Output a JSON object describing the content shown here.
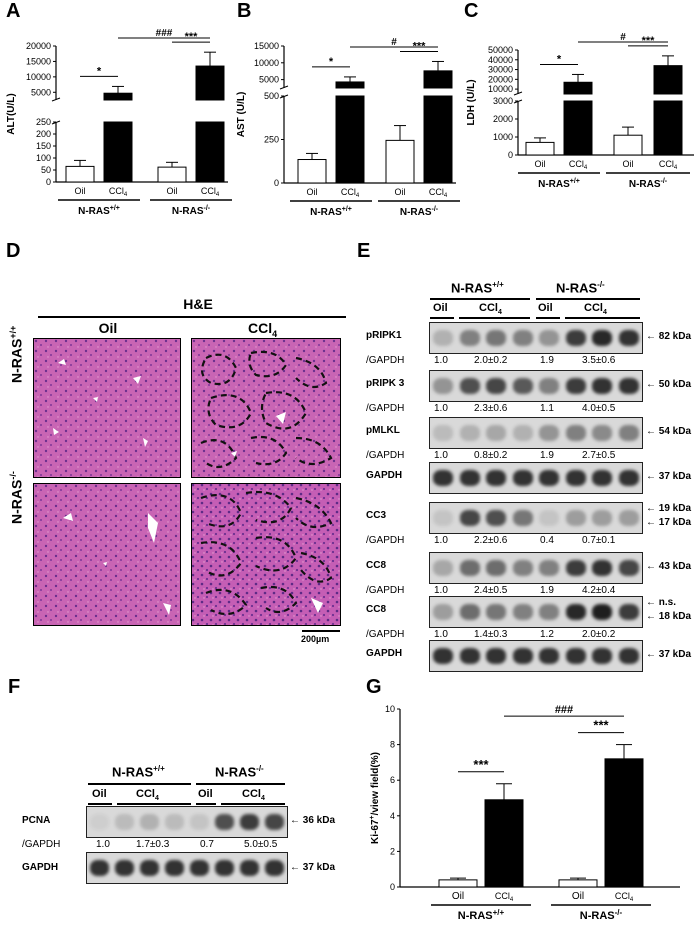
{
  "panels": {
    "A": "A",
    "B": "B",
    "C": "C",
    "D": "D",
    "E": "E",
    "F": "F",
    "G": "G"
  },
  "common": {
    "oil": "Oil",
    "ccl4": "CCl",
    "ccl4_sub": "4",
    "nras_wt": "N-RAS",
    "nras_wt_sup": "+/+",
    "nras_ko": "N-RAS",
    "nras_ko_sup": "-/-"
  },
  "chart_data": [
    {
      "id": "A",
      "type": "bar",
      "ylabel": "ALT(U/L)",
      "categories": [
        "Oil",
        "CCl4",
        "Oil",
        "CCl4"
      ],
      "groups": [
        "N-RAS+/+",
        "N-RAS-/-"
      ],
      "values": [
        65,
        4700,
        62,
        13500
      ],
      "errors": [
        25,
        2200,
        20,
        4500
      ],
      "fills": [
        "#ffffff",
        "#000000",
        "#ffffff",
        "#000000"
      ],
      "broken_axis": {
        "lower": [
          0,
          250
        ],
        "upper": [
          2500,
          20000
        ]
      },
      "lower_ticks": [
        "0",
        "50",
        "100",
        "150",
        "200",
        "250"
      ],
      "upper_ticks": [
        "5000",
        "10000",
        "15000",
        "20000"
      ],
      "sig_within": [
        "*",
        "***"
      ],
      "sig_between": "###"
    },
    {
      "id": "B",
      "type": "bar",
      "ylabel": "AST (U/L)",
      "categories": [
        "Oil",
        "CCl4",
        "Oil",
        "CCl4"
      ],
      "groups": [
        "N-RAS+/+",
        "N-RAS-/-"
      ],
      "values": [
        135,
        4300,
        245,
        7600
      ],
      "errors": [
        35,
        1500,
        85,
        2800
      ],
      "fills": [
        "#ffffff",
        "#000000",
        "#ffffff",
        "#000000"
      ],
      "broken_axis": {
        "lower": [
          0,
          500
        ],
        "upper": [
          2500,
          15000
        ]
      },
      "lower_ticks": [
        "0",
        "250",
        "500"
      ],
      "upper_ticks": [
        "5000",
        "10000",
        "15000"
      ],
      "sig_within": [
        "*",
        "***"
      ],
      "sig_between": "#"
    },
    {
      "id": "C",
      "type": "bar",
      "ylabel": "LDH (U/L)",
      "categories": [
        "Oil",
        "CCl4",
        "Oil",
        "CCl4"
      ],
      "groups": [
        "N-RAS+/+",
        "N-RAS-/-"
      ],
      "values": [
        700,
        17000,
        1100,
        34000
      ],
      "errors": [
        250,
        8000,
        450,
        10000
      ],
      "fills": [
        "#ffffff",
        "#000000",
        "#ffffff",
        "#000000"
      ],
      "broken_axis": {
        "lower": [
          0,
          3000
        ],
        "upper": [
          5000,
          50000
        ]
      },
      "lower_ticks": [
        "0",
        "1000",
        "2000",
        "3000"
      ],
      "upper_ticks": [
        "10000",
        "20000",
        "30000",
        "40000",
        "50000"
      ],
      "sig_within": [
        "*",
        "***"
      ],
      "sig_between": "#"
    },
    {
      "id": "G",
      "type": "bar",
      "ylabel": "Ki-67",
      "ylabel_sup": "+",
      "ylabel_tail": "/view field(%)",
      "categories": [
        "Oil",
        "CCl4",
        "Oil",
        "CCl4"
      ],
      "groups": [
        "N-RAS+/+",
        "N-RAS-/-"
      ],
      "values": [
        0.4,
        4.9,
        0.4,
        7.2
      ],
      "errors": [
        0.1,
        0.9,
        0.1,
        0.8
      ],
      "fills": [
        "#ffffff",
        "#000000",
        "#ffffff",
        "#000000"
      ],
      "ylim": [
        0,
        10
      ],
      "ticks": [
        "0",
        "2",
        "4",
        "6",
        "8",
        "10"
      ],
      "sig_within": [
        "***",
        "***"
      ],
      "sig_between": "###"
    }
  ],
  "histology": {
    "title": "H&E",
    "col_oil": "Oil",
    "col_ccl4": "CCl",
    "col_ccl4_sub": "4",
    "scale_bar": "200µm"
  },
  "western_E": {
    "rows": [
      {
        "label": "pRIPK1",
        "kda": "82 kDa"
      },
      {
        "label": "pRIPK 3",
        "kda": "50 kDa"
      },
      {
        "label": "pMLKL",
        "kda": "54 kDa"
      },
      {
        "label": "GAPDH",
        "kda": "37 kDa"
      },
      {
        "label": "CC3",
        "kda": "19 kDa",
        "kda2": "17 kDa"
      },
      {
        "label": "CC8",
        "kda": "43 kDa"
      },
      {
        "label": "CC8",
        "kda": "n.s.",
        "kda2": "18 kDa"
      },
      {
        "label": "GAPDH",
        "kda": "37 kDa"
      }
    ],
    "norm_label": "/GAPDH",
    "norms": [
      [
        "1.0",
        "2.0±0.2",
        "1.9",
        "3.5±0.6"
      ],
      [
        "1.0",
        "2.3±0.6",
        "1.1",
        "4.0±0.5"
      ],
      [
        "1.0",
        "0.8±0.2",
        "1.9",
        "2.7±0.5"
      ],
      [
        "1.0",
        "2.2±0.6",
        "0.4",
        "0.7±0.1"
      ],
      [
        "1.0",
        "2.4±0.5",
        "1.9",
        "4.2±0.4"
      ],
      [
        "1.0",
        "1.4±0.3",
        "1.2",
        "2.0±0.2"
      ]
    ]
  },
  "western_F": {
    "rows": [
      {
        "label": "PCNA",
        "kda": "36 kDa"
      },
      {
        "label": "GAPDH",
        "kda": "37 kDa"
      }
    ],
    "norm_label": "/GAPDH",
    "norms": [
      "1.0",
      "1.7±0.3",
      "0.7",
      "5.0±0.5"
    ]
  }
}
